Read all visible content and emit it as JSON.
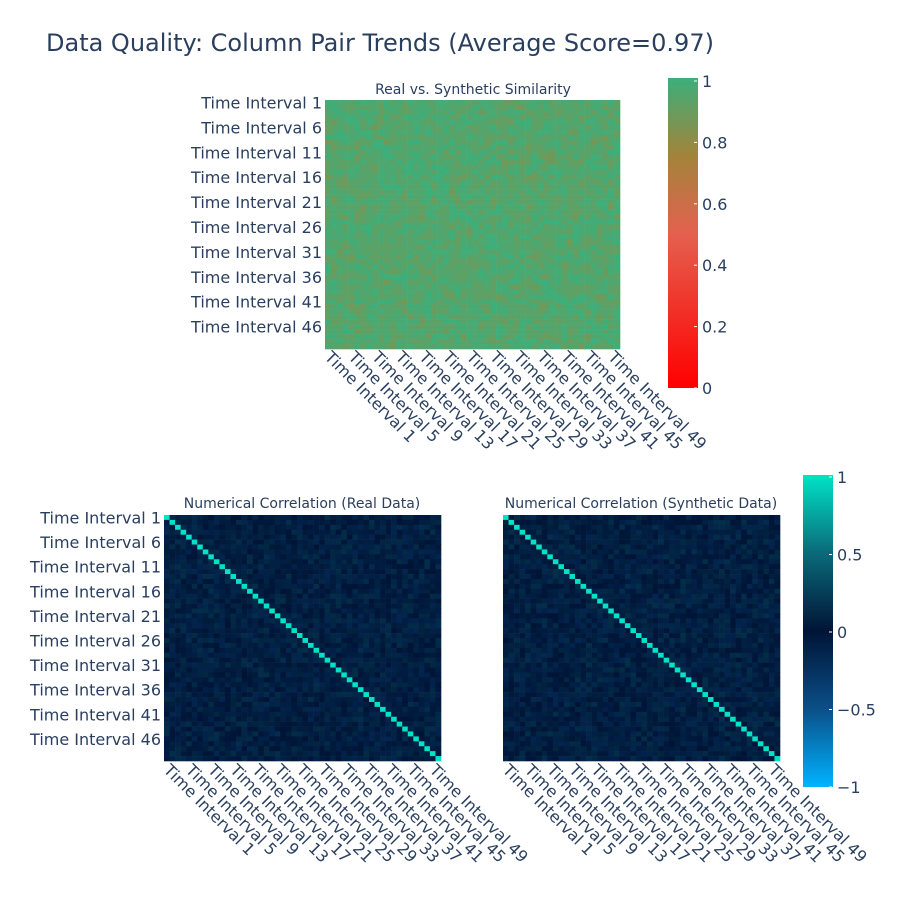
{
  "title": "Data Quality: Column Pair Trends (Average Score=0.97)",
  "chart_data": [
    {
      "type": "heatmap",
      "title": "Real vs. Synthetic Similarity",
      "n": 50,
      "y_tick_labels": [
        "Time Interval 1",
        "Time Interval 6",
        "Time Interval 11",
        "Time Interval 16",
        "Time Interval 21",
        "Time Interval 26",
        "Time Interval 31",
        "Time Interval 36",
        "Time Interval 41",
        "Time Interval 46"
      ],
      "x_tick_labels": [
        "Time Interval 1",
        "Time Interval 5",
        "Time Interval 9",
        "Time Interval 13",
        "Time Interval 17",
        "Time Interval 21",
        "Time Interval 25",
        "Time Interval 29",
        "Time Interval 33",
        "Time Interval 37",
        "Time Interval 41",
        "Time Interval 45",
        "Time Interval 49"
      ],
      "zrange": [
        0,
        1
      ],
      "values_note": "scores mostly 0.9-1.0 (green)",
      "colorscale": [
        [
          0,
          "#ff0000"
        ],
        [
          0.5,
          "#e4614f"
        ],
        [
          0.75,
          "#a2843a"
        ],
        [
          1,
          "#3caf7b"
        ]
      ],
      "colorbar_ticks": [
        "0",
        "0.2",
        "0.4",
        "0.6",
        "0.8",
        "1"
      ]
    },
    {
      "type": "heatmap",
      "title": "Numerical Correlation (Real Data)",
      "n": 50,
      "y_tick_labels": [
        "Time Interval 1",
        "Time Interval 6",
        "Time Interval 11",
        "Time Interval 16",
        "Time Interval 21",
        "Time Interval 26",
        "Time Interval 31",
        "Time Interval 36",
        "Time Interval 41",
        "Time Interval 46"
      ],
      "x_tick_labels": [
        "Time Interval 1",
        "Time Interval 5",
        "Time Interval 9",
        "Time Interval 13",
        "Time Interval 17",
        "Time Interval 21",
        "Time Interval 25",
        "Time Interval 29",
        "Time Interval 33",
        "Time Interval 37",
        "Time Interval 41",
        "Time Interval 45",
        "Time Interval 49"
      ],
      "zrange": [
        -1,
        1
      ],
      "diagonal_value": 1,
      "offdiag_note": "near 0"
    },
    {
      "type": "heatmap",
      "title": "Numerical Correlation (Synthetic Data)",
      "n": 50,
      "x_tick_labels": [
        "Time Interval 1",
        "Time Interval 5",
        "Time Interval 9",
        "Time Interval 13",
        "Time Interval 17",
        "Time Interval 21",
        "Time Interval 25",
        "Time Interval 29",
        "Time Interval 33",
        "Time Interval 37",
        "Time Interval 41",
        "Time Interval 45",
        "Time Interval 49"
      ],
      "zrange": [
        -1,
        1
      ],
      "diagonal_value": 1,
      "offdiag_note": "near 0",
      "colorscale": [
        [
          0,
          "#00b3ff"
        ],
        [
          0.5,
          "#001436"
        ],
        [
          1,
          "#00e3c6"
        ]
      ],
      "colorbar_ticks": [
        "−1",
        "−0.5",
        "0",
        "0.5",
        "1"
      ]
    }
  ]
}
